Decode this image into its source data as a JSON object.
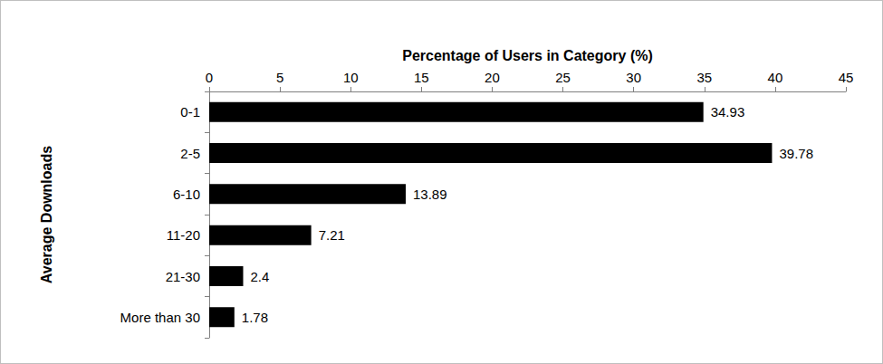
{
  "chart_data": {
    "type": "bar",
    "orientation": "horizontal",
    "x_label": "Percentage of Users in Category (%)",
    "y_label": "Average Downloads",
    "categories": [
      "0-1",
      "2-5",
      "6-10",
      "11-20",
      "21-30",
      "More than 30"
    ],
    "values": [
      34.93,
      39.78,
      13.89,
      7.21,
      2.4,
      1.78
    ],
    "color": "#000000",
    "xlim": [
      0,
      45
    ],
    "xticks": [
      0,
      5,
      10,
      15,
      20,
      25,
      30,
      35,
      40,
      45
    ],
    "grid": false,
    "data_labels": true
  }
}
